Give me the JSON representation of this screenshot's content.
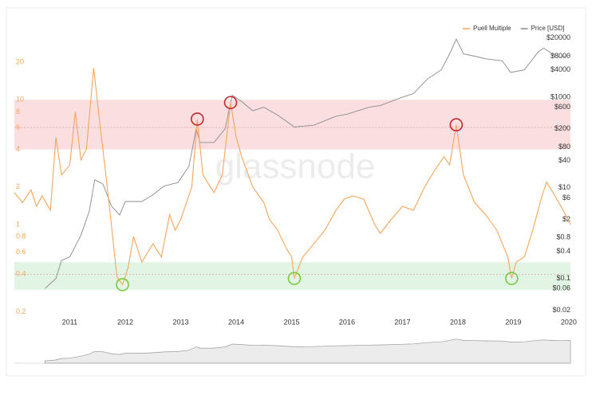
{
  "chart_data": {
    "type": "line",
    "watermark": "glassnode",
    "log_scale": true,
    "xlim": [
      2010,
      2020.03
    ],
    "xticks": [
      2011,
      2012,
      2013,
      2014,
      2015,
      2016,
      2017,
      2018,
      2019,
      2020
    ],
    "ylim": [
      0.19,
      35
    ],
    "yticks": [
      0.2,
      0.4,
      0.6,
      0.8,
      1,
      2,
      4,
      6,
      8,
      10,
      20
    ],
    "y2lim": [
      0.016,
      27500
    ],
    "y2ticks": [
      {
        "value": 0.02,
        "label": "$0.02"
      },
      {
        "value": 0.06,
        "label": "$0.06"
      },
      {
        "value": 0.1,
        "label": "$0.1"
      },
      {
        "value": 0.4,
        "label": "$0.4"
      },
      {
        "value": 0.8,
        "label": "$0.8"
      },
      {
        "value": 2,
        "label": "$2"
      },
      {
        "value": 6,
        "label": "$6"
      },
      {
        "value": 10,
        "label": "$10"
      },
      {
        "value": 40,
        "label": "$40"
      },
      {
        "value": 80,
        "label": "$80"
      },
      {
        "value": 200,
        "label": "$200"
      },
      {
        "value": 600,
        "label": "$600"
      },
      {
        "value": 1000,
        "label": "$1000"
      },
      {
        "value": 4000,
        "label": "$4000"
      },
      {
        "value": 8000,
        "label": "$8000"
      },
      {
        "value": 20000,
        "label": "$20000"
      }
    ],
    "bands": [
      {
        "from": 4,
        "to": 10,
        "color": "#fbdfe0"
      },
      {
        "from": 0.3,
        "to": 0.5,
        "color": "#e2f5e4"
      }
    ],
    "reference_lines": [
      6,
      0.4
    ],
    "highlights": [
      {
        "x": 2013.3,
        "value": 7,
        "color": "#c0272d"
      },
      {
        "x": 2013.9,
        "value": 9.5,
        "color": "#c0272d"
      },
      {
        "x": 2017.97,
        "value": 6.3,
        "color": "#c0272d"
      },
      {
        "x": 2011.95,
        "value": 0.33,
        "color": "#7ac943"
      },
      {
        "x": 2015.05,
        "value": 0.37,
        "color": "#7ac943"
      },
      {
        "x": 2018.97,
        "value": 0.37,
        "color": "#7ac943"
      }
    ],
    "series": [
      {
        "name": "Puell Multiple",
        "color": "#f5a55a",
        "axis": "y",
        "x": [
          2010.0,
          2010.15,
          2010.3,
          2010.4,
          2010.5,
          2010.65,
          2010.75,
          2010.85,
          2011.0,
          2011.1,
          2011.2,
          2011.3,
          2011.43,
          2011.55,
          2011.65,
          2011.75,
          2011.85,
          2011.95,
          2012.05,
          2012.15,
          2012.3,
          2012.5,
          2012.65,
          2012.8,
          2012.9,
          2013.0,
          2013.2,
          2013.3,
          2013.4,
          2013.6,
          2013.75,
          2013.9,
          2014.0,
          2014.1,
          2014.3,
          2014.5,
          2014.6,
          2014.75,
          2014.9,
          2015.0,
          2015.05,
          2015.2,
          2015.4,
          2015.6,
          2015.8,
          2015.95,
          2016.1,
          2016.3,
          2016.5,
          2016.6,
          2016.8,
          2017.0,
          2017.2,
          2017.4,
          2017.6,
          2017.75,
          2017.85,
          2017.97,
          2018.1,
          2018.3,
          2018.5,
          2018.7,
          2018.9,
          2018.97,
          2019.05,
          2019.2,
          2019.35,
          2019.5,
          2019.6,
          2019.75,
          2019.9,
          2020.03
        ],
        "values": [
          1.8,
          1.5,
          1.9,
          1.4,
          1.7,
          1.3,
          5.0,
          2.5,
          3.0,
          8.0,
          3.3,
          4.0,
          18,
          6.0,
          2.5,
          1.0,
          0.38,
          0.33,
          0.45,
          0.8,
          0.5,
          0.7,
          0.55,
          1.2,
          0.9,
          1.1,
          2.0,
          7.0,
          2.5,
          1.8,
          2.5,
          9.5,
          5.0,
          3.5,
          2.0,
          1.5,
          1.1,
          0.9,
          0.65,
          0.55,
          0.37,
          0.55,
          0.7,
          0.9,
          1.3,
          1.6,
          1.7,
          1.6,
          1.0,
          0.85,
          1.1,
          1.4,
          1.3,
          2.0,
          2.8,
          3.5,
          3.0,
          6.3,
          2.5,
          1.5,
          1.2,
          0.9,
          0.55,
          0.37,
          0.5,
          0.55,
          0.9,
          1.6,
          2.2,
          1.7,
          1.3,
          1.0
        ]
      },
      {
        "name": "Price [USD]",
        "color": "#8a8a8a",
        "axis": "y2",
        "x": [
          2010.55,
          2010.75,
          2010.85,
          2011.0,
          2011.2,
          2011.35,
          2011.45,
          2011.6,
          2011.75,
          2011.9,
          2012.0,
          2012.3,
          2012.5,
          2012.7,
          2012.95,
          2013.15,
          2013.28,
          2013.35,
          2013.6,
          2013.8,
          2013.93,
          2014.1,
          2014.3,
          2014.5,
          2014.75,
          2015.05,
          2015.4,
          2015.8,
          2016.0,
          2016.4,
          2016.6,
          2016.95,
          2017.2,
          2017.45,
          2017.7,
          2017.87,
          2017.97,
          2018.1,
          2018.3,
          2018.5,
          2018.8,
          2018.95,
          2019.2,
          2019.45,
          2019.55,
          2019.7,
          2019.85,
          2020.03
        ],
        "values": [
          0.06,
          0.1,
          0.25,
          0.3,
          0.9,
          3,
          15,
          12,
          4,
          2.5,
          5,
          5,
          7,
          11,
          13,
          30,
          200,
          100,
          100,
          200,
          1100,
          800,
          500,
          600,
          400,
          220,
          240,
          380,
          420,
          600,
          650,
          950,
          1200,
          2500,
          4000,
          10000,
          19000,
          9000,
          8000,
          7000,
          6300,
          3500,
          4000,
          10000,
          12000,
          9000,
          7500,
          8500
        ]
      }
    ]
  }
}
